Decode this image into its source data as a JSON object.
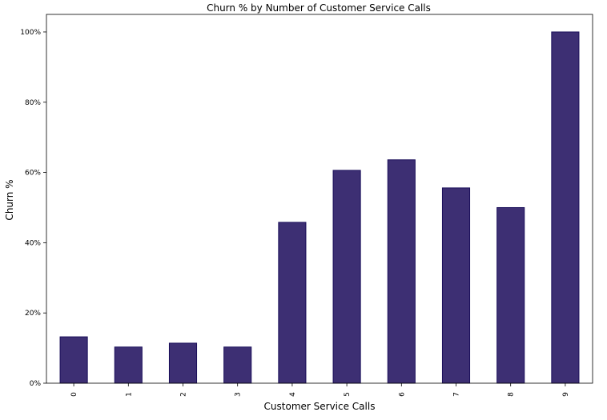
{
  "chart_data": {
    "type": "bar",
    "title": "Churn % by Number of Customer Service Calls",
    "xlabel": "Customer Service Calls",
    "ylabel": "Churn %",
    "categories": [
      "0",
      "1",
      "2",
      "3",
      "4",
      "5",
      "6",
      "7",
      "8",
      "9"
    ],
    "values": [
      13.2,
      10.3,
      11.4,
      10.3,
      45.8,
      60.6,
      63.6,
      55.6,
      50.0,
      100.0
    ],
    "ylim": [
      0,
      105
    ],
    "yticks": [
      0,
      20,
      40,
      60,
      80,
      100
    ],
    "ytick_labels": [
      "0%",
      "20%",
      "40%",
      "60%",
      "80%",
      "100%"
    ],
    "bar_color": "#3d2f73",
    "bar_edge_color": "#1a0f5a",
    "grid": false,
    "legend": "none"
  }
}
